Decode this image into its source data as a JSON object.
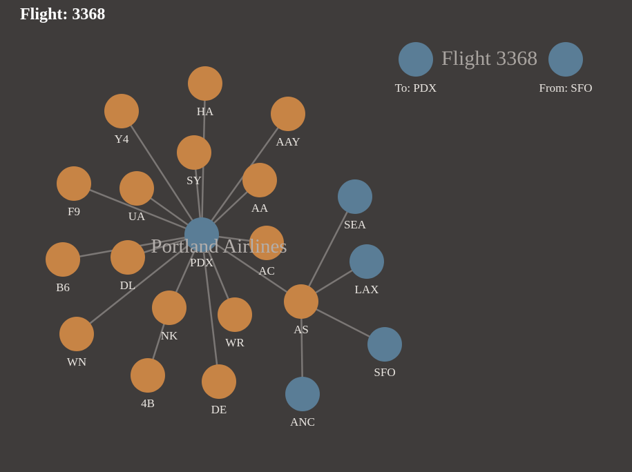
{
  "title": "Flight: 3368",
  "colors": {
    "background": "#3f3c3b",
    "airline": "#c78445",
    "airport": "#5a7d96",
    "edge": "#7b7775",
    "label": "#e8e4df"
  },
  "legend": {
    "title": "Flight 3368",
    "to_label": "To: PDX",
    "from_label": "From: SFO"
  },
  "center_label": "Portland Airlines",
  "nodes": [
    {
      "id": "PDX",
      "label": "PDX",
      "kind": "airport"
    },
    {
      "id": "HA",
      "label": "HA",
      "kind": "airline"
    },
    {
      "id": "Y4",
      "label": "Y4",
      "kind": "airline"
    },
    {
      "id": "AAY",
      "label": "AAY",
      "kind": "airline"
    },
    {
      "id": "SY",
      "label": "SY",
      "kind": "airline"
    },
    {
      "id": "AA",
      "label": "AA",
      "kind": "airline"
    },
    {
      "id": "F9",
      "label": "F9",
      "kind": "airline"
    },
    {
      "id": "UA",
      "label": "UA",
      "kind": "airline"
    },
    {
      "id": "AC",
      "label": "AC",
      "kind": "airline"
    },
    {
      "id": "B6",
      "label": "B6",
      "kind": "airline"
    },
    {
      "id": "DL",
      "label": "DL",
      "kind": "airline"
    },
    {
      "id": "NK",
      "label": "NK",
      "kind": "airline"
    },
    {
      "id": "WR",
      "label": "WR",
      "kind": "airline"
    },
    {
      "id": "WN",
      "label": "WN",
      "kind": "airline"
    },
    {
      "id": "4B",
      "label": "4B",
      "kind": "airline"
    },
    {
      "id": "DE",
      "label": "DE",
      "kind": "airline"
    },
    {
      "id": "AS",
      "label": "AS",
      "kind": "airline"
    },
    {
      "id": "SEA",
      "label": "SEA",
      "kind": "airport"
    },
    {
      "id": "LAX",
      "label": "LAX",
      "kind": "airport"
    },
    {
      "id": "SFO",
      "label": "SFO",
      "kind": "airport"
    },
    {
      "id": "ANC",
      "label": "ANC",
      "kind": "airport"
    }
  ],
  "edges": [
    [
      "PDX",
      "HA"
    ],
    [
      "PDX",
      "Y4"
    ],
    [
      "PDX",
      "AAY"
    ],
    [
      "PDX",
      "SY"
    ],
    [
      "PDX",
      "AA"
    ],
    [
      "PDX",
      "F9"
    ],
    [
      "PDX",
      "UA"
    ],
    [
      "PDX",
      "AC"
    ],
    [
      "PDX",
      "B6"
    ],
    [
      "PDX",
      "DL"
    ],
    [
      "PDX",
      "NK"
    ],
    [
      "PDX",
      "WR"
    ],
    [
      "PDX",
      "WN"
    ],
    [
      "PDX",
      "DE"
    ],
    [
      "PDX",
      "AS"
    ],
    [
      "NK",
      "4B"
    ],
    [
      "AS",
      "SEA"
    ],
    [
      "AS",
      "LAX"
    ],
    [
      "AS",
      "SFO"
    ],
    [
      "AS",
      "ANC"
    ]
  ]
}
